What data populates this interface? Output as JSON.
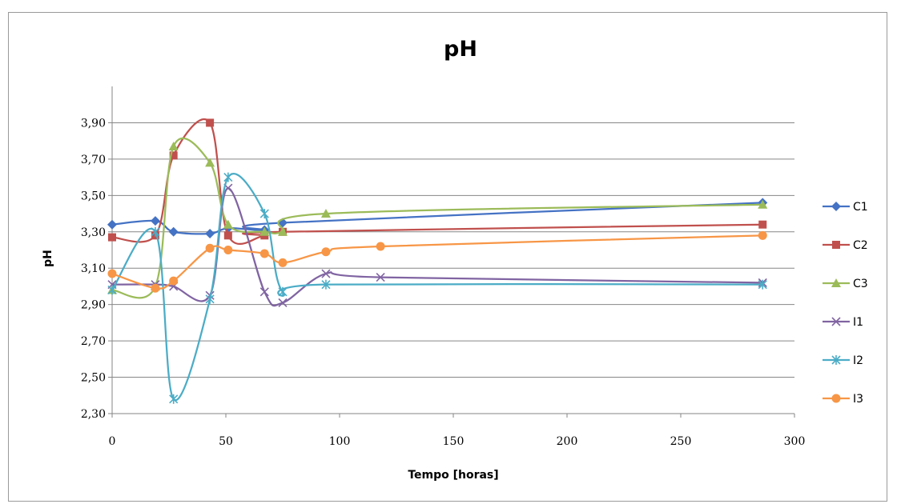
{
  "chart_data": {
    "type": "line",
    "title": "pH",
    "xlabel": "Tempo [horas]",
    "ylabel": "pH",
    "xlim": [
      0,
      300
    ],
    "ylim": [
      2.3,
      4.1
    ],
    "xticks": [
      0,
      50,
      100,
      150,
      200,
      250,
      300
    ],
    "xtick_labels": [
      "0",
      "50",
      "100",
      "150",
      "200",
      "250",
      "300"
    ],
    "yticks": [
      2.3,
      2.5,
      2.7,
      2.9,
      3.1,
      3.3,
      3.5,
      3.7,
      3.9
    ],
    "ytick_labels": [
      "2,30",
      "2,50",
      "2,70",
      "2,90",
      "3,10",
      "3,30",
      "3,50",
      "3,70",
      "3,90"
    ],
    "grid": "horizontal",
    "legend_position": "right",
    "series": [
      {
        "name": "C1",
        "color": "#4472c4",
        "marker": "diamond",
        "x": [
          0,
          19,
          27,
          43,
          51,
          67,
          75,
          286
        ],
        "y": [
          3.34,
          3.36,
          3.3,
          3.29,
          3.32,
          3.31,
          3.35,
          3.46
        ]
      },
      {
        "name": "C2",
        "color": "#c0504d",
        "marker": "square",
        "x": [
          0,
          19,
          27,
          43,
          51,
          67,
          75,
          286
        ],
        "y": [
          3.27,
          3.28,
          3.72,
          3.9,
          3.28,
          3.28,
          3.3,
          3.34
        ]
      },
      {
        "name": "C3",
        "color": "#9bbb59",
        "marker": "triangle",
        "x": [
          0,
          19,
          27,
          43,
          51,
          67,
          75,
          94,
          286
        ],
        "y": [
          2.98,
          3.0,
          3.77,
          3.68,
          3.34,
          3.3,
          3.3,
          3.4,
          3.45
        ]
      },
      {
        "name": "I1",
        "color": "#8064a2",
        "marker": "x",
        "x": [
          0,
          19,
          27,
          43,
          51,
          67,
          75,
          94,
          118,
          286
        ],
        "y": [
          3.01,
          3.01,
          3.0,
          2.95,
          3.54,
          2.97,
          2.91,
          3.07,
          3.05,
          3.02
        ]
      },
      {
        "name": "I2",
        "color": "#4bacc6",
        "marker": "star",
        "x": [
          0,
          19,
          27,
          43,
          51,
          67,
          75,
          94,
          286
        ],
        "y": [
          2.98,
          3.3,
          2.38,
          2.93,
          3.6,
          3.4,
          2.97,
          3.01,
          3.01
        ]
      },
      {
        "name": "I3",
        "color": "#f79646",
        "marker": "circle",
        "x": [
          0,
          19,
          27,
          43,
          51,
          67,
          75,
          94,
          118,
          286
        ],
        "y": [
          3.07,
          2.99,
          3.03,
          3.21,
          3.2,
          3.18,
          3.13,
          3.19,
          3.22,
          3.28
        ]
      }
    ]
  }
}
